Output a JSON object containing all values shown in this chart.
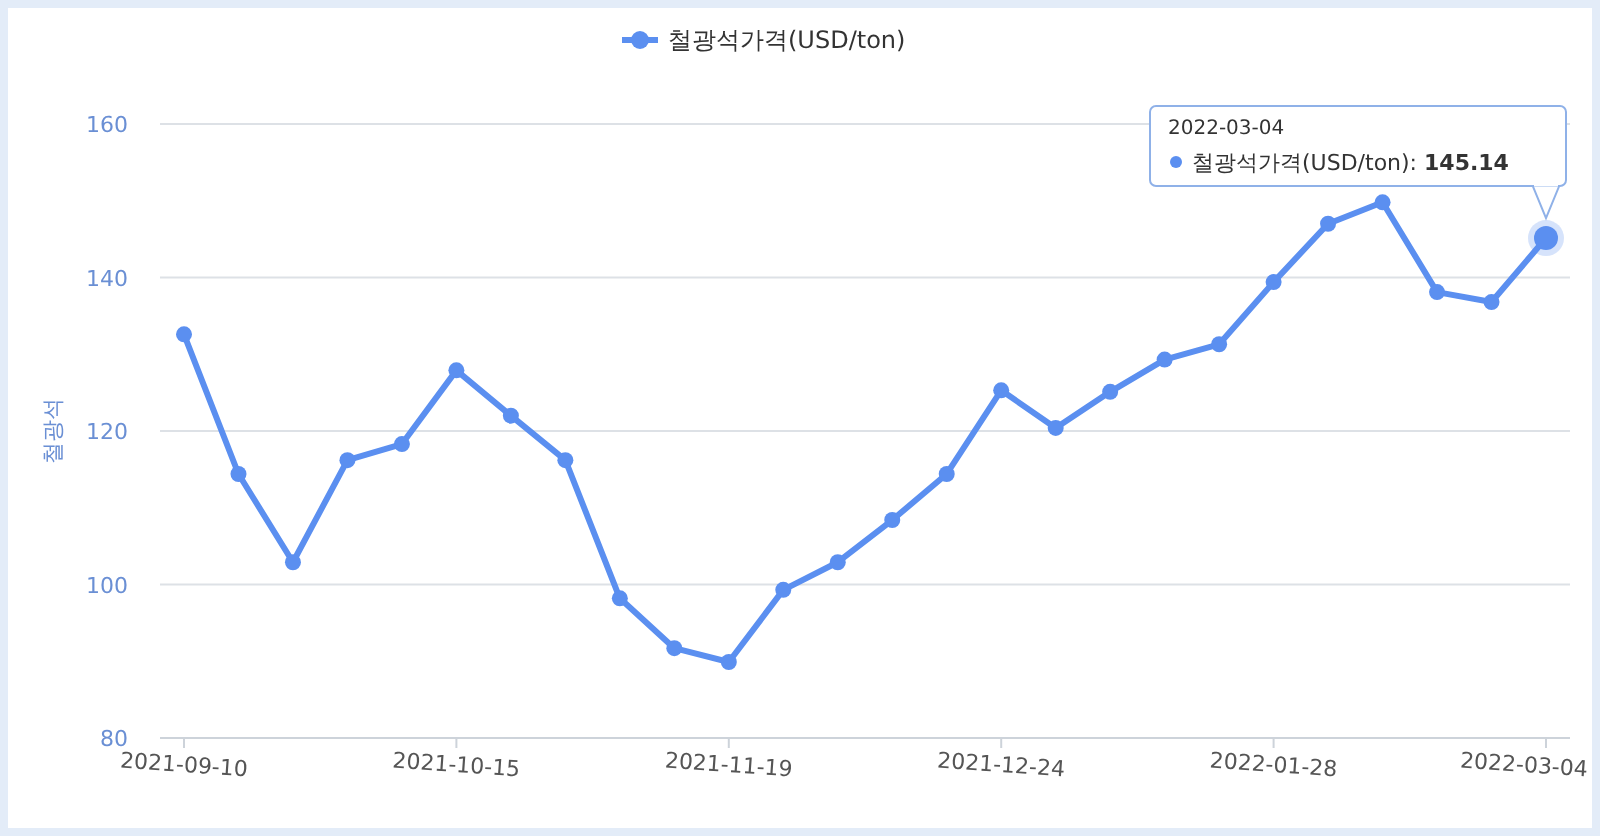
{
  "chart_data": {
    "type": "line",
    "ylabel": "철광석",
    "categories": [
      "2021-09-10",
      null,
      null,
      null,
      null,
      "2021-10-15",
      null,
      null,
      null,
      null,
      "2021-11-19",
      null,
      null,
      null,
      null,
      "2021-12-24",
      null,
      null,
      null,
      null,
      "2022-01-28",
      null,
      null,
      null,
      null,
      "2022-03-04"
    ],
    "series": [
      {
        "name": "철광석가격(USD/ton)",
        "color": "#5b8ff0",
        "values": [
          132.6,
          114.4,
          102.9,
          116.2,
          118.3,
          127.9,
          122.0,
          116.2,
          98.2,
          91.7,
          89.9,
          99.3,
          102.9,
          108.4,
          114.4,
          125.3,
          120.4,
          125.1,
          129.3,
          131.3,
          139.4,
          147.0,
          149.8,
          138.1,
          136.8,
          145.14
        ]
      }
    ],
    "ylim": [
      80,
      160
    ],
    "yticks": [
      80,
      100,
      120,
      140,
      160
    ],
    "grid": "y",
    "legend": "top",
    "marker": "circle",
    "line_style": "solid",
    "annotations": [
      "2022-03-04\n철광석가격(USD/ton): 145.14"
    ]
  }
}
